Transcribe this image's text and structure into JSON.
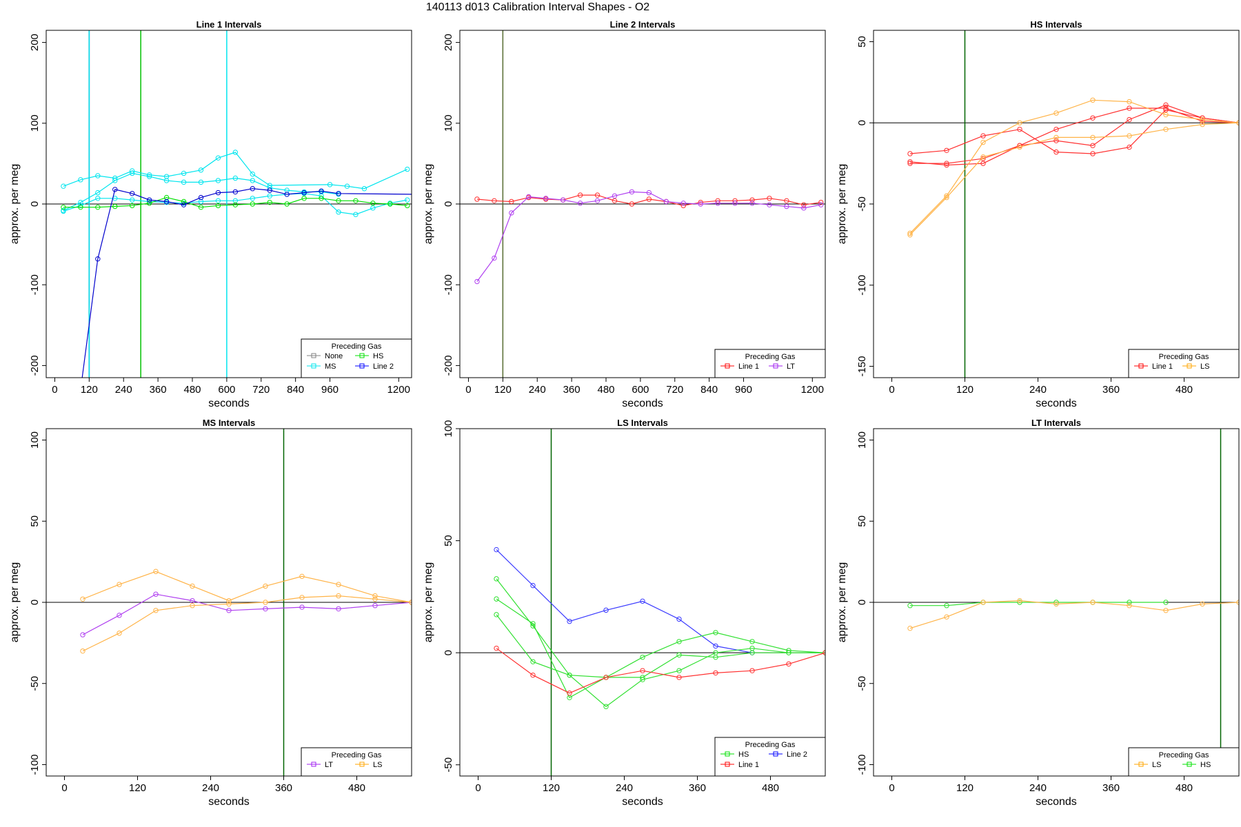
{
  "title": "140113   d013   Calibration Interval Shapes - O2",
  "chart_data": [
    {
      "type": "line",
      "title": "Line 1 Intervals",
      "xlabel": "seconds",
      "ylabel": "approx. per meg",
      "xlim": [
        -30,
        1245
      ],
      "ylim": [
        -215,
        215
      ],
      "xticks": [
        0,
        120,
        240,
        360,
        480,
        600,
        720,
        840,
        960,
        1200
      ],
      "yticks": [
        -200,
        -100,
        0,
        100,
        200
      ],
      "legend_title": "Preceding Gas",
      "legend_rows": [
        [
          {
            "name": "None",
            "color": "#808080"
          },
          {
            "name": "HS",
            "color": "#00e000"
          }
        ],
        [
          {
            "name": "MS",
            "color": "#00e5ee"
          },
          {
            "name": "Line 2",
            "color": "#0000ff"
          }
        ]
      ],
      "vlines": [
        {
          "x": 120,
          "color": "#000080"
        },
        {
          "x": 120,
          "color": "#00e5ee"
        },
        {
          "x": 300,
          "color": "#00c000"
        },
        {
          "x": 600,
          "color": "#00e5ee"
        }
      ],
      "series": [
        {
          "color": "#00e5ee",
          "x": [
            30,
            90,
            150,
            210,
            270,
            330,
            390,
            450,
            510,
            570,
            630,
            690,
            750,
            960,
            1020,
            1080,
            1230
          ],
          "y": [
            22,
            30,
            35,
            32,
            41,
            36,
            34,
            38,
            42,
            57,
            64,
            37,
            23,
            24,
            22,
            19,
            43
          ]
        },
        {
          "color": "#00e5ee",
          "x": [
            30,
            90,
            150,
            210,
            270,
            330,
            390,
            450,
            510,
            570,
            630,
            690,
            750,
            810,
            870,
            930,
            990
          ],
          "y": [
            -8,
            2,
            14,
            29,
            38,
            34,
            29,
            27,
            27,
            29,
            32,
            29,
            20,
            17,
            15,
            15,
            12
          ]
        },
        {
          "color": "#00e5ee",
          "x": [
            30,
            90,
            150,
            210,
            270,
            330,
            390,
            450,
            510,
            570,
            630,
            690,
            750,
            810,
            870,
            930,
            990,
            1050,
            1110,
            1170,
            1230
          ],
          "y": [
            -9,
            -2,
            7,
            7,
            5,
            3,
            2,
            1,
            3,
            4,
            4,
            7,
            10,
            12,
            13,
            10,
            -10,
            -13,
            -5,
            1,
            5
          ]
        },
        {
          "color": "#00e000",
          "x": [
            30,
            90,
            150,
            210,
            270,
            330,
            390,
            450,
            510,
            570,
            630,
            690,
            750,
            810,
            870,
            930,
            990,
            1050,
            1110,
            1170,
            1230
          ],
          "y": [
            -4,
            -4,
            -4,
            -3,
            -2,
            1,
            8,
            3,
            -4,
            -2,
            -1,
            0,
            2,
            0,
            7,
            7,
            4,
            4,
            1,
            0,
            -2
          ]
        },
        {
          "color": "#0000cd",
          "x": [
            30,
            90,
            150,
            210,
            270,
            330,
            390,
            450,
            510,
            570,
            630,
            690,
            750,
            810,
            870,
            930,
            990,
            1245
          ],
          "y": [
            -230,
            -230,
            -68,
            18,
            13,
            5,
            3,
            -1,
            8,
            14,
            15,
            19,
            17,
            12,
            14,
            16,
            13,
            12
          ],
          "bare_points": [
            0,
            1,
            17
          ]
        }
      ]
    },
    {
      "type": "line",
      "title": "Line 2 Intervals",
      "xlabel": "seconds",
      "ylabel": "approx. per meg",
      "xlim": [
        -30,
        1245
      ],
      "ylim": [
        -215,
        215
      ],
      "xticks": [
        0,
        120,
        240,
        360,
        480,
        600,
        720,
        840,
        960,
        1200
      ],
      "yticks": [
        -200,
        -100,
        0,
        100,
        200
      ],
      "legend_title": "Preceding Gas",
      "legend_rows": [
        [
          {
            "name": "Line 1",
            "color": "#ff0000"
          },
          {
            "name": "LT",
            "color": "#a020f0"
          }
        ]
      ],
      "vlines": [
        {
          "x": 120,
          "color": "#556b2f"
        }
      ],
      "series": [
        {
          "color": "#ff3030",
          "x": [
            30,
            90,
            150,
            210,
            270,
            330,
            390,
            450,
            510,
            570,
            630,
            690,
            750,
            810,
            870,
            930,
            990,
            1050,
            1110,
            1170,
            1230
          ],
          "y": [
            6,
            4,
            3,
            8,
            6,
            5,
            11,
            11,
            4,
            0,
            6,
            3,
            -2,
            2,
            4,
            4,
            5,
            7,
            4,
            -1,
            2
          ]
        },
        {
          "color": "#b040f0",
          "x": [
            30,
            90,
            150,
            210,
            270,
            330,
            390,
            450,
            510,
            570,
            630,
            690,
            750,
            810,
            870,
            930,
            990,
            1050,
            1110,
            1170,
            1230
          ],
          "y": [
            -96,
            -67,
            -11,
            9,
            7,
            5,
            1,
            4,
            10,
            15,
            14,
            3,
            1,
            0,
            1,
            1,
            1,
            -1,
            -3,
            -5,
            -1
          ]
        }
      ]
    },
    {
      "type": "line",
      "title": "HS Intervals",
      "xlabel": "seconds",
      "ylabel": "approx. per meg",
      "xlim": [
        -30,
        570
      ],
      "ylim": [
        -157,
        57
      ],
      "xticks": [
        0,
        120,
        240,
        360,
        480
      ],
      "yticks": [
        -150,
        -100,
        -50,
        0,
        50
      ],
      "legend_title": "Preceding Gas",
      "legend_rows": [
        [
          {
            "name": "Line 1",
            "color": "#ff0000"
          },
          {
            "name": "LS",
            "color": "#ffa500"
          }
        ]
      ],
      "vlines": [
        {
          "x": 120,
          "color": "#006400"
        }
      ],
      "series": [
        {
          "color": "#ff3030",
          "x": [
            30,
            90,
            150,
            210,
            270,
            330,
            390,
            450,
            510,
            570
          ],
          "y": [
            -19,
            -17,
            -8,
            -4,
            -18,
            -19,
            -15,
            8,
            3,
            0
          ]
        },
        {
          "color": "#ff3030",
          "x": [
            30,
            90,
            150,
            210,
            270,
            330,
            390,
            450,
            510,
            570
          ],
          "y": [
            -24,
            -26,
            -25,
            -14,
            -4,
            3,
            9,
            9,
            1,
            0
          ]
        },
        {
          "color": "#ff3030",
          "x": [
            30,
            90,
            150,
            210,
            270,
            330,
            390,
            450,
            510,
            570
          ],
          "y": [
            -25,
            -25,
            -22,
            -14,
            -11,
            -14,
            2,
            11,
            3,
            0
          ]
        },
        {
          "color": "#ffb347",
          "x": [
            30,
            90,
            150,
            210,
            270,
            330,
            390,
            450,
            510,
            570
          ],
          "y": [
            -68,
            -45,
            -12,
            0,
            6,
            14,
            13,
            5,
            2,
            0
          ]
        },
        {
          "color": "#ffb347",
          "x": [
            30,
            90,
            150,
            210,
            270,
            330,
            390,
            450,
            510,
            570
          ],
          "y": [
            -69,
            -46,
            -21,
            -15,
            -9,
            -9,
            -8,
            -4,
            -1,
            0
          ]
        }
      ]
    },
    {
      "type": "line",
      "title": "MS Intervals",
      "xlabel": "seconds",
      "ylabel": "approx. per meg",
      "xlim": [
        -30,
        570
      ],
      "ylim": [
        -107,
        107
      ],
      "xticks": [
        0,
        120,
        240,
        360,
        480
      ],
      "yticks": [
        -100,
        -50,
        0,
        50,
        100
      ],
      "legend_title": "Preceding Gas",
      "legend_rows": [
        [
          {
            "name": "LT",
            "color": "#a020f0"
          },
          {
            "name": "LS",
            "color": "#ffa500"
          }
        ]
      ],
      "vlines": [
        {
          "x": 360,
          "color": "#006400"
        }
      ],
      "series": [
        {
          "color": "#b040f0",
          "x": [
            30,
            90,
            150,
            210,
            270,
            330,
            390,
            450,
            510,
            570
          ],
          "y": [
            -20,
            -8,
            5,
            1,
            -5,
            -4,
            -3,
            -4,
            -2,
            0
          ]
        },
        {
          "color": "#ffb347",
          "x": [
            30,
            90,
            150,
            210,
            270,
            330,
            390,
            450,
            510,
            570
          ],
          "y": [
            2,
            11,
            19,
            10,
            1,
            10,
            16,
            11,
            4,
            0
          ]
        },
        {
          "color": "#ffb347",
          "x": [
            30,
            90,
            150,
            210,
            270,
            330,
            390,
            450,
            510,
            570
          ],
          "y": [
            -30,
            -19,
            -5,
            -2,
            -1,
            0,
            3,
            4,
            2,
            0
          ]
        }
      ]
    },
    {
      "type": "line",
      "title": "LS Intervals",
      "xlabel": "seconds",
      "ylabel": "approx. per meg",
      "xlim": [
        -30,
        570
      ],
      "ylim": [
        -55,
        100
      ],
      "xticks": [
        0,
        120,
        240,
        360,
        480
      ],
      "yticks": [
        -50,
        0,
        50,
        100
      ],
      "legend_title": "Preceding Gas",
      "legend_rows": [
        [
          {
            "name": "HS",
            "color": "#00e000"
          },
          {
            "name": "Line 2",
            "color": "#0000ff"
          }
        ],
        [
          {
            "name": "Line 1",
            "color": "#ff0000"
          }
        ]
      ],
      "vlines": [
        {
          "x": 120,
          "color": "#006400"
        }
      ],
      "series": [
        {
          "color": "#3a3aff",
          "x": [
            30,
            90,
            150,
            210,
            270,
            330,
            390,
            450
          ],
          "y": [
            46,
            30,
            14,
            19,
            23,
            15,
            3,
            0
          ]
        },
        {
          "color": "#30e030",
          "x": [
            30,
            90,
            150,
            210,
            270,
            330,
            390,
            450,
            510,
            570
          ],
          "y": [
            33,
            12,
            -10,
            -11,
            -11,
            -1,
            -2,
            0,
            0,
            0
          ]
        },
        {
          "color": "#30e030",
          "x": [
            30,
            90,
            150,
            210,
            270,
            330,
            390,
            450,
            510,
            570
          ],
          "y": [
            24,
            13,
            -20,
            -11,
            -2,
            5,
            9,
            5,
            1,
            0
          ]
        },
        {
          "color": "#30e030",
          "x": [
            30,
            90,
            150,
            210,
            270,
            330,
            390,
            450,
            510,
            570
          ],
          "y": [
            17,
            -4,
            -10,
            -24,
            -12,
            -8,
            0,
            2,
            0,
            0
          ]
        },
        {
          "color": "#ff3030",
          "x": [
            30,
            90,
            150,
            210,
            270,
            330,
            390,
            450,
            510,
            570
          ],
          "y": [
            2,
            -10,
            -18,
            -11,
            -8,
            -11,
            -9,
            -8,
            -5,
            0
          ]
        }
      ]
    },
    {
      "type": "line",
      "title": "LT Intervals",
      "xlabel": "seconds",
      "ylabel": "approx. per meg",
      "xlim": [
        -30,
        570
      ],
      "ylim": [
        -107,
        107
      ],
      "xticks": [
        0,
        120,
        240,
        360,
        480
      ],
      "yticks": [
        -100,
        -50,
        0,
        50,
        100
      ],
      "legend_title": "Preceding Gas",
      "legend_rows": [
        [
          {
            "name": "LS",
            "color": "#ffa500"
          },
          {
            "name": "HS",
            "color": "#00e000"
          }
        ]
      ],
      "vlines": [
        {
          "x": 540,
          "color": "#006400"
        }
      ],
      "series": [
        {
          "color": "#30e030",
          "x": [
            30,
            90,
            150,
            210,
            270,
            330,
            390,
            450
          ],
          "y": [
            -2,
            -2,
            0,
            0,
            0,
            0,
            0,
            0
          ]
        },
        {
          "color": "#ffb347",
          "x": [
            30,
            90,
            150,
            210,
            270,
            330,
            390,
            450,
            510,
            570
          ],
          "y": [
            -16,
            -9,
            0,
            1,
            -1,
            0,
            -2,
            -5,
            -1,
            0
          ]
        }
      ]
    }
  ]
}
